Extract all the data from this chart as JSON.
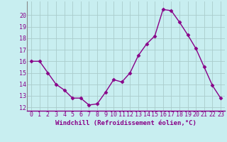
{
  "x": [
    0,
    1,
    2,
    3,
    4,
    5,
    6,
    7,
    8,
    9,
    10,
    11,
    12,
    13,
    14,
    15,
    16,
    17,
    18,
    19,
    20,
    21,
    22,
    23
  ],
  "y": [
    16.0,
    16.0,
    15.0,
    14.0,
    13.5,
    12.8,
    12.8,
    12.2,
    12.3,
    13.3,
    14.4,
    14.2,
    15.0,
    16.5,
    17.5,
    18.2,
    20.5,
    20.4,
    19.4,
    18.3,
    17.1,
    15.5,
    13.9,
    12.8
  ],
  "line_color": "#880088",
  "marker": "D",
  "markersize": 2.5,
  "linewidth": 1.0,
  "bg_color": "#c8eef0",
  "grid_color": "#aacccc",
  "xlabel": "Windchill (Refroidissement éolien,°C)",
  "xlabel_color": "#880088",
  "xlabel_fontsize": 6.5,
  "tick_color": "#880088",
  "tick_fontsize": 6.0,
  "ylim": [
    11.7,
    21.2
  ],
  "yticks": [
    12,
    13,
    14,
    15,
    16,
    17,
    18,
    19,
    20
  ],
  "xticks": [
    0,
    1,
    2,
    3,
    4,
    5,
    6,
    7,
    8,
    9,
    10,
    11,
    12,
    13,
    14,
    15,
    16,
    17,
    18,
    19,
    20,
    21,
    22,
    23
  ]
}
